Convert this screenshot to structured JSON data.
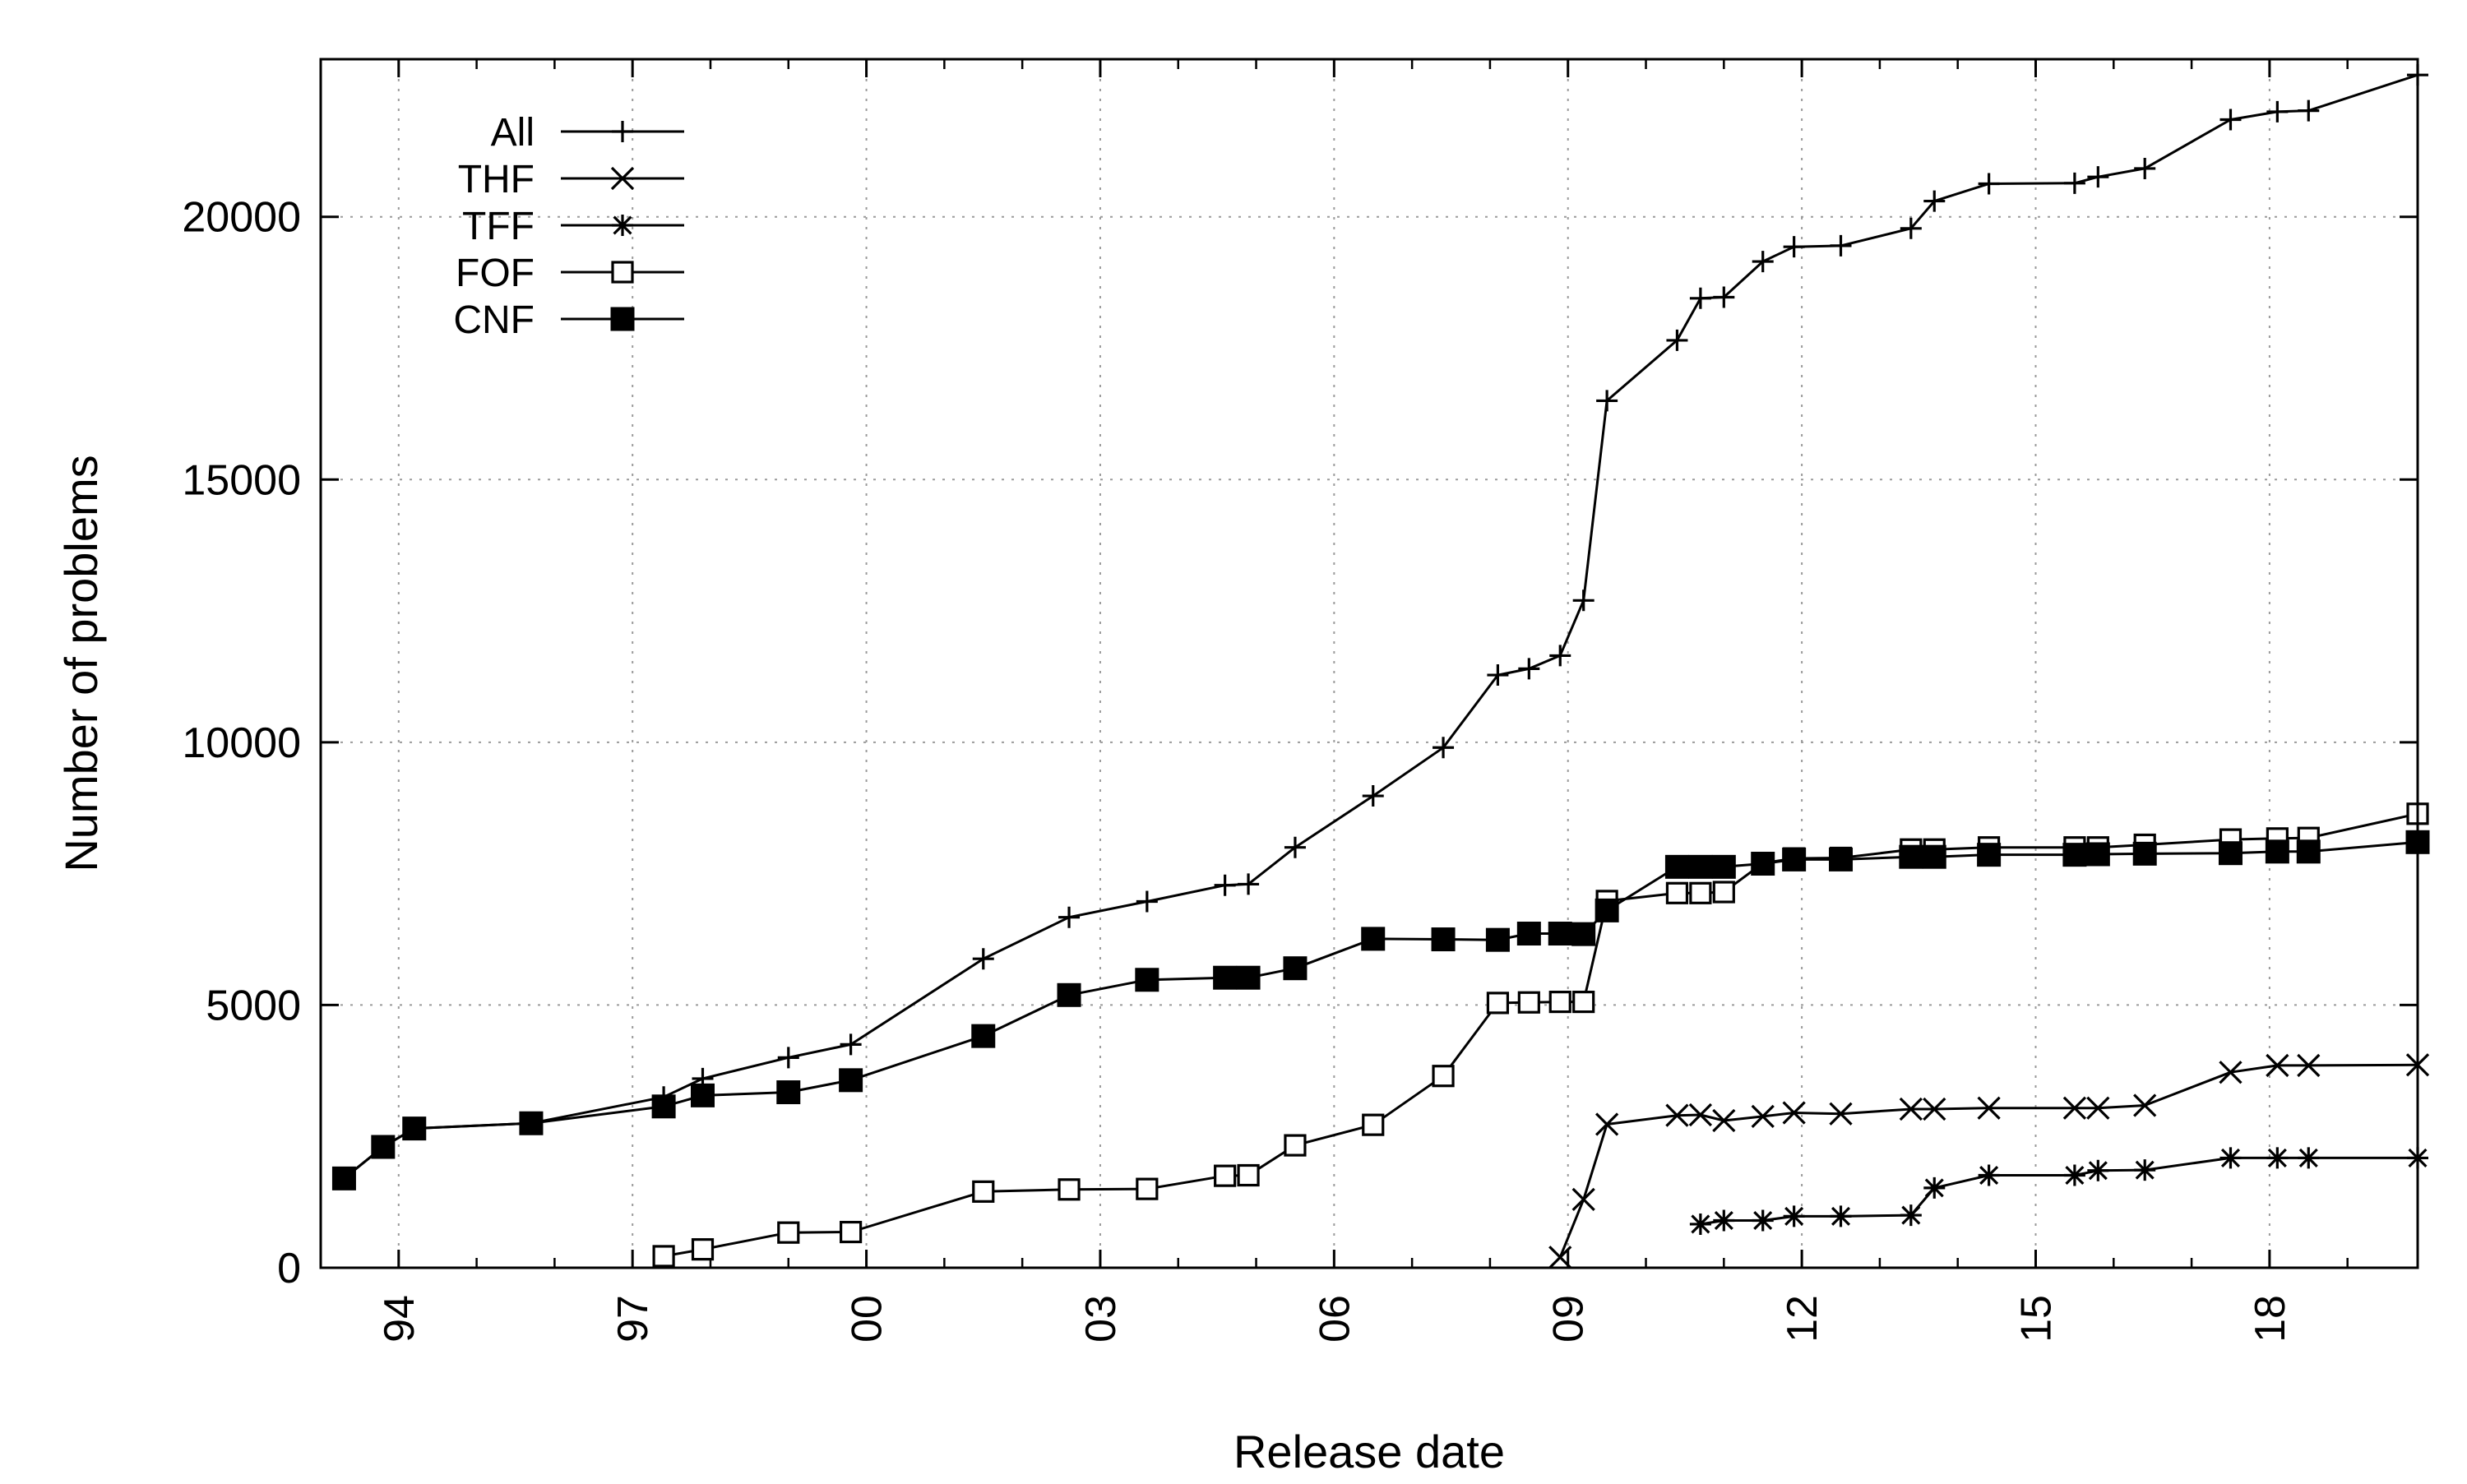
{
  "chart_data": {
    "type": "line",
    "title": "",
    "xlabel": "Release date",
    "ylabel": "Number of problems",
    "xlim": [
      1993.0,
      2019.9
    ],
    "ylim": [
      0,
      23000
    ],
    "x_ticks": [
      {
        "value": 1994,
        "label": "94"
      },
      {
        "value": 1997,
        "label": "97"
      },
      {
        "value": 2000,
        "label": "00"
      },
      {
        "value": 2003,
        "label": "03"
      },
      {
        "value": 2006,
        "label": "06"
      },
      {
        "value": 2009,
        "label": "09"
      },
      {
        "value": 2012,
        "label": "12"
      },
      {
        "value": 2015,
        "label": "15"
      },
      {
        "value": 2018,
        "label": "18"
      }
    ],
    "y_ticks": [
      {
        "value": 0,
        "label": "0"
      },
      {
        "value": 5000,
        "label": "5000"
      },
      {
        "value": 10000,
        "label": "10000"
      },
      {
        "value": 15000,
        "label": "15000"
      },
      {
        "value": 20000,
        "label": "20000"
      }
    ],
    "grid": true,
    "legend_position": "top-left",
    "series": [
      {
        "name": "All",
        "marker": "plus",
        "points": [
          [
            1993.3,
            1700
          ],
          [
            1993.8,
            2300
          ],
          [
            1994.2,
            2650
          ],
          [
            1995.7,
            2750
          ],
          [
            1997.4,
            3250
          ],
          [
            1997.9,
            3600
          ],
          [
            1999.0,
            4000
          ],
          [
            1999.8,
            4250
          ],
          [
            2001.5,
            5880
          ],
          [
            2002.6,
            6670
          ],
          [
            2003.6,
            6970
          ],
          [
            2004.6,
            7280
          ],
          [
            2004.9,
            7300
          ],
          [
            2005.5,
            8000
          ],
          [
            2006.5,
            8980
          ],
          [
            2007.4,
            9900
          ],
          [
            2008.1,
            11280
          ],
          [
            2008.5,
            11400
          ],
          [
            2008.9,
            11650
          ],
          [
            2009.2,
            12700
          ],
          [
            2009.5,
            16500
          ],
          [
            2010.4,
            17650
          ],
          [
            2010.7,
            18450
          ],
          [
            2011.0,
            18470
          ],
          [
            2011.5,
            19150
          ],
          [
            2011.9,
            19430
          ],
          [
            2012.5,
            19450
          ],
          [
            2013.4,
            19780
          ],
          [
            2013.7,
            20300
          ],
          [
            2014.4,
            20630
          ],
          [
            2015.5,
            20640
          ],
          [
            2015.8,
            20760
          ],
          [
            2016.4,
            20920
          ],
          [
            2017.5,
            21850
          ],
          [
            2018.1,
            22000
          ],
          [
            2018.5,
            22020
          ],
          [
            2019.9,
            22700
          ]
        ]
      },
      {
        "name": "THF",
        "marker": "cross",
        "points": [
          [
            2008.9,
            200
          ],
          [
            2009.2,
            1300
          ],
          [
            2009.5,
            2730
          ],
          [
            2010.4,
            2900
          ],
          [
            2010.7,
            2910
          ],
          [
            2011.0,
            2800
          ],
          [
            2011.5,
            2880
          ],
          [
            2011.9,
            2950
          ],
          [
            2012.5,
            2930
          ],
          [
            2013.4,
            3020
          ],
          [
            2013.7,
            3020
          ],
          [
            2014.4,
            3040
          ],
          [
            2015.5,
            3040
          ],
          [
            2015.8,
            3040
          ],
          [
            2016.4,
            3090
          ],
          [
            2017.5,
            3720
          ],
          [
            2018.1,
            3850
          ],
          [
            2018.5,
            3850
          ],
          [
            2019.9,
            3860
          ]
        ]
      },
      {
        "name": "TFF",
        "marker": "star",
        "points": [
          [
            2010.7,
            830
          ],
          [
            2011.0,
            900
          ],
          [
            2011.5,
            900
          ],
          [
            2011.9,
            980
          ],
          [
            2012.5,
            980
          ],
          [
            2013.4,
            1000
          ],
          [
            2013.7,
            1520
          ],
          [
            2014.4,
            1760
          ],
          [
            2015.5,
            1760
          ],
          [
            2015.8,
            1850
          ],
          [
            2016.4,
            1860
          ],
          [
            2017.5,
            2090
          ],
          [
            2018.1,
            2090
          ],
          [
            2018.5,
            2090
          ],
          [
            2019.9,
            2090
          ]
        ]
      },
      {
        "name": "FOF",
        "marker": "square-open",
        "points": [
          [
            1997.4,
            220
          ],
          [
            1997.9,
            350
          ],
          [
            1999.0,
            670
          ],
          [
            1999.8,
            680
          ],
          [
            2001.5,
            1450
          ],
          [
            2002.6,
            1490
          ],
          [
            2003.6,
            1500
          ],
          [
            2004.6,
            1750
          ],
          [
            2004.9,
            1760
          ],
          [
            2005.5,
            2330
          ],
          [
            2006.5,
            2720
          ],
          [
            2007.4,
            3650
          ],
          [
            2008.1,
            5040
          ],
          [
            2008.5,
            5050
          ],
          [
            2008.9,
            5060
          ],
          [
            2009.2,
            5060
          ],
          [
            2009.5,
            6980
          ],
          [
            2010.4,
            7130
          ],
          [
            2010.7,
            7130
          ],
          [
            2011.0,
            7150
          ],
          [
            2011.5,
            7700
          ],
          [
            2011.9,
            7790
          ],
          [
            2012.5,
            7800
          ],
          [
            2013.4,
            7960
          ],
          [
            2013.7,
            7960
          ],
          [
            2014.4,
            8000
          ],
          [
            2015.5,
            8000
          ],
          [
            2015.8,
            8000
          ],
          [
            2016.4,
            8050
          ],
          [
            2017.5,
            8150
          ],
          [
            2018.1,
            8170
          ],
          [
            2018.5,
            8180
          ],
          [
            2019.9,
            8640
          ]
        ]
      },
      {
        "name": "CNF",
        "marker": "square-filled",
        "points": [
          [
            1993.3,
            1700
          ],
          [
            1993.8,
            2300
          ],
          [
            1994.2,
            2650
          ],
          [
            1995.7,
            2750
          ],
          [
            1997.4,
            3070
          ],
          [
            1997.9,
            3280
          ],
          [
            1999.0,
            3340
          ],
          [
            1999.8,
            3570
          ],
          [
            2001.5,
            4410
          ],
          [
            2002.6,
            5190
          ],
          [
            2003.6,
            5480
          ],
          [
            2004.6,
            5520
          ],
          [
            2004.9,
            5520
          ],
          [
            2005.5,
            5700
          ],
          [
            2006.5,
            6260
          ],
          [
            2007.4,
            6250
          ],
          [
            2008.1,
            6240
          ],
          [
            2008.5,
            6360
          ],
          [
            2008.9,
            6360
          ],
          [
            2009.2,
            6350
          ],
          [
            2009.5,
            6800
          ],
          [
            2010.4,
            7630
          ],
          [
            2010.7,
            7630
          ],
          [
            2011.0,
            7630
          ],
          [
            2011.5,
            7690
          ],
          [
            2011.9,
            7770
          ],
          [
            2012.5,
            7770
          ],
          [
            2013.4,
            7820
          ],
          [
            2013.7,
            7820
          ],
          [
            2014.4,
            7860
          ],
          [
            2015.5,
            7860
          ],
          [
            2015.8,
            7870
          ],
          [
            2016.4,
            7880
          ],
          [
            2017.5,
            7890
          ],
          [
            2018.1,
            7920
          ],
          [
            2018.5,
            7920
          ],
          [
            2019.9,
            8100
          ]
        ]
      }
    ]
  }
}
